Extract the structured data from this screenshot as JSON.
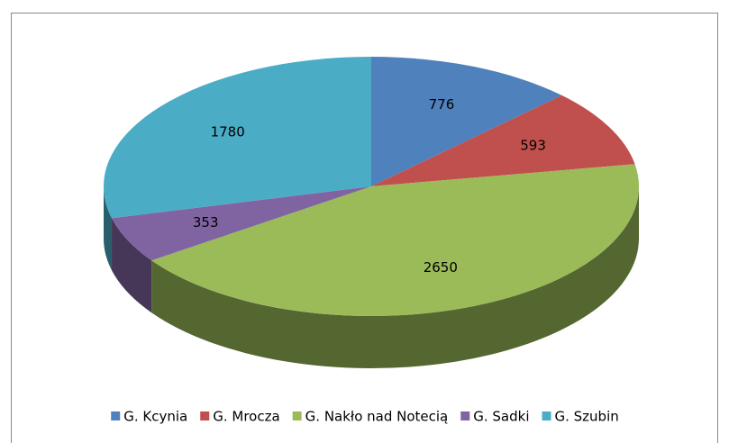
{
  "chart_data": {
    "type": "pie3d",
    "categories": [
      "G. Kcynia",
      "G. Mrocza",
      "G. Nakło nad Notecią",
      "G. Sadki",
      "G. Szubin"
    ],
    "values": [
      776,
      593,
      2650,
      353,
      1780
    ],
    "colors": [
      "#4f81bd",
      "#c0504d",
      "#9bbb59",
      "#8064a2",
      "#4bacc6"
    ],
    "legend": "bottom"
  }
}
